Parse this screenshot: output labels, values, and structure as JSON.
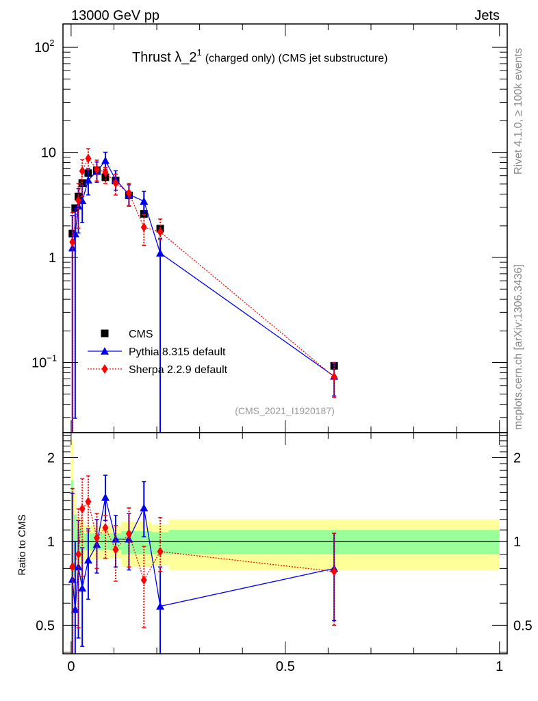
{
  "header": {
    "left": "13000 GeV pp",
    "right": "Jets"
  },
  "side_labels": {
    "top": "Rivet 4.1.0, ≥ 100k events",
    "bottom": "mcplots.cern.ch [arXiv:1306.3436]"
  },
  "watermark": "(CMS_2021_I1920187)",
  "chart_data": [
    {
      "type": "line",
      "title": "Thrust λ_2",
      "title_sup": "1",
      "title_suffix": "(charged only) (CMS jet substructure)",
      "xlabel": "",
      "ylabel": "",
      "yscale": "log",
      "xlim": [
        -0.019,
        1.018
      ],
      "ylim": [
        0.0215,
        167
      ],
      "yticks": [
        {
          "v": 0.1,
          "base": "10",
          "exp": "−1"
        },
        {
          "v": 1,
          "base": "1",
          "exp": ""
        },
        {
          "v": 10,
          "base": "10",
          "exp": ""
        },
        {
          "v": 100,
          "base": "10",
          "exp": "2"
        }
      ],
      "legend_position": "center-left",
      "x": [
        0.003,
        0.0095,
        0.017,
        0.026,
        0.04,
        0.06,
        0.08,
        0.104,
        0.135,
        0.17,
        0.208,
        0.614
      ],
      "series": [
        {
          "name": "CMS",
          "color": "#000000",
          "marker": "square",
          "values": [
            1.69,
            2.95,
            3.8,
            5.1,
            6.35,
            6.75,
            5.8,
            5.4,
            3.9,
            2.6,
            1.88,
            0.093
          ]
        },
        {
          "name": "Pythia 8.315 default",
          "color": "#0000ee",
          "marker": "triangle",
          "line": "solid",
          "values": [
            1.23,
            1.68,
            3.08,
            3.47,
            5.44,
            6.58,
            8.35,
            5.5,
            3.98,
            3.43,
            1.1,
            0.074
          ]
        },
        {
          "name": "Sherpa 2.2.9 default",
          "color": "#ff0000",
          "marker": "diamond",
          "line": "dotted",
          "values": [
            1.4,
            null,
            3.49,
            6.65,
            8.77,
            6.9,
            6.5,
            5.1,
            4.1,
            1.94,
            1.75,
            0.073
          ]
        }
      ]
    },
    {
      "type": "line",
      "ylabel": "Ratio to CMS",
      "yscale": "log",
      "xlim": [
        -0.019,
        1.018
      ],
      "ylim": [
        0.395,
        2.46
      ],
      "xticks": [
        {
          "v": 0,
          "label": "0"
        },
        {
          "v": 0.5,
          "label": "0.5"
        },
        {
          "v": 1,
          "label": "1"
        }
      ],
      "yticks": [
        {
          "v": 0.5,
          "label": "0.5"
        },
        {
          "v": 1,
          "label": "1"
        },
        {
          "v": 2,
          "label": "2"
        }
      ],
      "x": [
        0.003,
        0.0095,
        0.017,
        0.026,
        0.04,
        0.06,
        0.08,
        0.104,
        0.135,
        0.17,
        0.208,
        0.614
      ],
      "bands": {
        "bin_edges": [
          0,
          0.006,
          0.013,
          0.021,
          0.03,
          0.05,
          0.069,
          0.091,
          0.117,
          0.152,
          0.188,
          0.228,
          1.0
        ],
        "total_color": "#ffff99",
        "stat_color": "#99ff99",
        "total_lo": [
          0.3,
          0.6,
          0.82,
          0.83,
          0.865,
          0.865,
          0.865,
          0.87,
          0.81,
          0.81,
          0.82,
          0.79
        ],
        "total_hi": [
          2.32,
          1.51,
          1.22,
          1.2,
          1.14,
          1.14,
          1.14,
          1.14,
          1.18,
          1.18,
          1.15,
          1.2
        ],
        "stat_lo": [
          0.3,
          0.75,
          0.9,
          0.9,
          0.93,
          0.93,
          0.93,
          0.93,
          0.9,
          0.9,
          0.9,
          0.9
        ],
        "stat_hi": [
          1.66,
          1.25,
          1.11,
          1.1,
          1.07,
          1.07,
          1.07,
          1.07,
          1.09,
          1.09,
          1.08,
          1.1
        ]
      },
      "series": [
        {
          "name": "Pythia 8.315 default",
          "color": "#0000ee",
          "values": [
            0.73,
            0.57,
            0.81,
            0.68,
            0.857,
            0.975,
            1.44,
            1.02,
            1.02,
            1.32,
            0.585,
            0.8
          ],
          "err_lo": [
            0.01,
            0.01,
            0.45,
            0.42,
            0.62,
            0.77,
            1.19,
            0.81,
            0.79,
            1.04,
            0.01,
            0.52
          ],
          "err_hi": [
            1.49,
            1.0,
            1.19,
            0.95,
            1.11,
            1.2,
            1.73,
            1.24,
            1.26,
            1.64,
            0.81,
            1.07
          ]
        },
        {
          "name": "Sherpa 2.2.9 default",
          "color": "#ff0000",
          "values": [
            0.81,
            null,
            0.9,
            1.31,
            1.39,
            1.03,
            1.12,
            0.935,
            1.066,
            0.727,
            0.92,
            0.78
          ],
          "err_lo": [
            0.01,
            null,
            0.49,
            0.75,
            1.09,
            0.8,
            0.87,
            0.72,
            0.81,
            0.49,
            0.78,
            0.5
          ],
          "err_hi": [
            1.55,
            null,
            1.31,
            1.68,
            1.72,
            1.26,
            1.24,
            1.14,
            1.32,
            0.96,
            1.22,
            1.07
          ]
        }
      ]
    }
  ]
}
